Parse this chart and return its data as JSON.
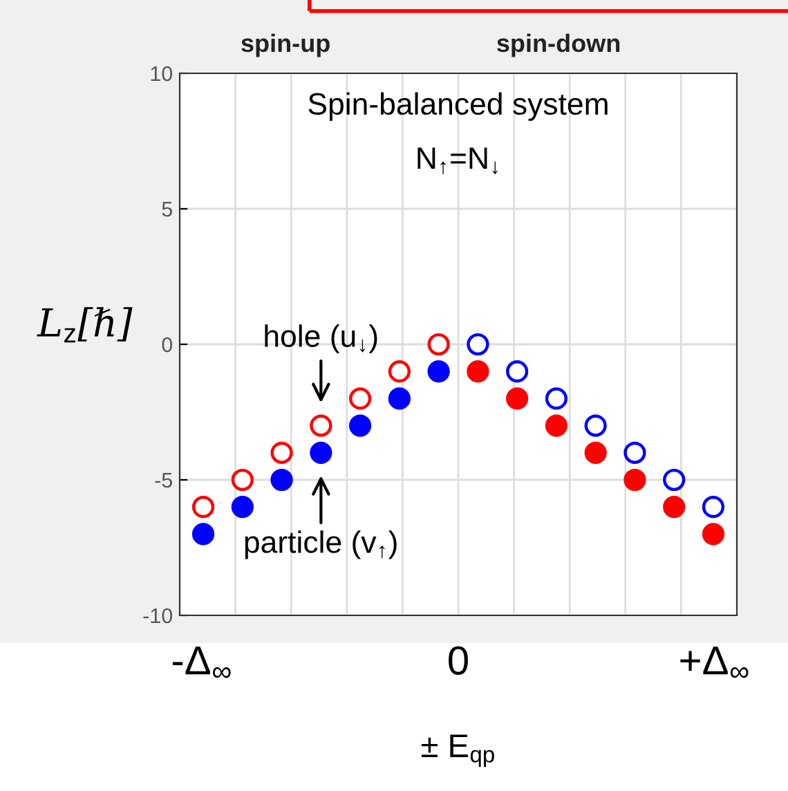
{
  "chart_data": {
    "type": "scatter",
    "xlabel": "± E$_{qp}$",
    "ylabel": "L$_{z}$[ℏ]",
    "categories": [
      null,
      null,
      null,
      null,
      null,
      null,
      null,
      null,
      null,
      null,
      null,
      null,
      null,
      null
    ],
    "ylim": [
      -10,
      10
    ],
    "yticks": [
      -10,
      -5,
      0,
      5,
      10
    ],
    "grid": true,
    "marker": "circle",
    "series": [
      {
        "color": "#ff0000",
        "values": [
          -6,
          -5,
          -4,
          -3,
          -2,
          -1,
          0,
          null,
          null,
          null,
          null,
          null,
          null,
          null
        ]
      },
      {
        "color": "#0000ff",
        "values": [
          -7,
          -6,
          -5,
          -4,
          -3,
          -2,
          -1,
          null,
          null,
          null,
          null,
          null,
          null,
          null
        ]
      },
      {
        "color": "#0000ff",
        "values": [
          null,
          null,
          null,
          null,
          null,
          null,
          null,
          0,
          -1,
          -2,
          -3,
          -4,
          -5,
          -6
        ]
      },
      {
        "color": "#ff0000",
        "values": [
          null,
          null,
          null,
          null,
          null,
          null,
          null,
          -1,
          -2,
          -3,
          -4,
          -5,
          -6,
          -7
        ]
      }
    ],
    "annotations": [
      "spin-up",
      "spin-down",
      "Spin-balanced system",
      "N$_{↑}$=N$_{↓}$",
      "-Δ$_{∞}$",
      "0",
      "+Δ$_{∞}$",
      {
        "text": "hole (u$_{↓}$)",
        "y": -3
      },
      {
        "text": "particle (v$_{↑}$)",
        "y": -4
      }
    ]
  }
}
